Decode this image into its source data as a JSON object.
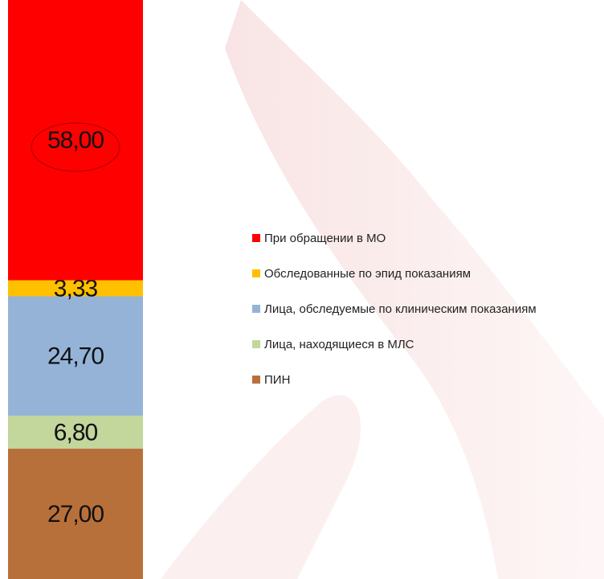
{
  "chart_data": {
    "type": "stacked_bar",
    "categories": [
      null
    ],
    "series": [
      {
        "name": "При обращении в МО",
        "color": "#ff0000",
        "values": [
          58.0
        ],
        "value_labels": [
          "58,00"
        ]
      },
      {
        "name": "Обследованные по эпид показаниям",
        "color": "#ffc000",
        "values": [
          3.33
        ],
        "value_labels": [
          "3,33"
        ]
      },
      {
        "name": "Лица, обследуемые по клиническим показаниям",
        "color": "#95b3d7",
        "values": [
          24.7
        ],
        "value_labels": [
          "24,70"
        ]
      },
      {
        "name": "Лица, находящиеся в МЛС",
        "color": "#c3d69b",
        "values": [
          6.8
        ],
        "value_labels": [
          "6,80"
        ]
      },
      {
        "name": "ПИН",
        "color": "#b8703a",
        "values": [
          27.0
        ],
        "value_labels": [
          "27,00"
        ]
      }
    ],
    "legend": "right"
  }
}
